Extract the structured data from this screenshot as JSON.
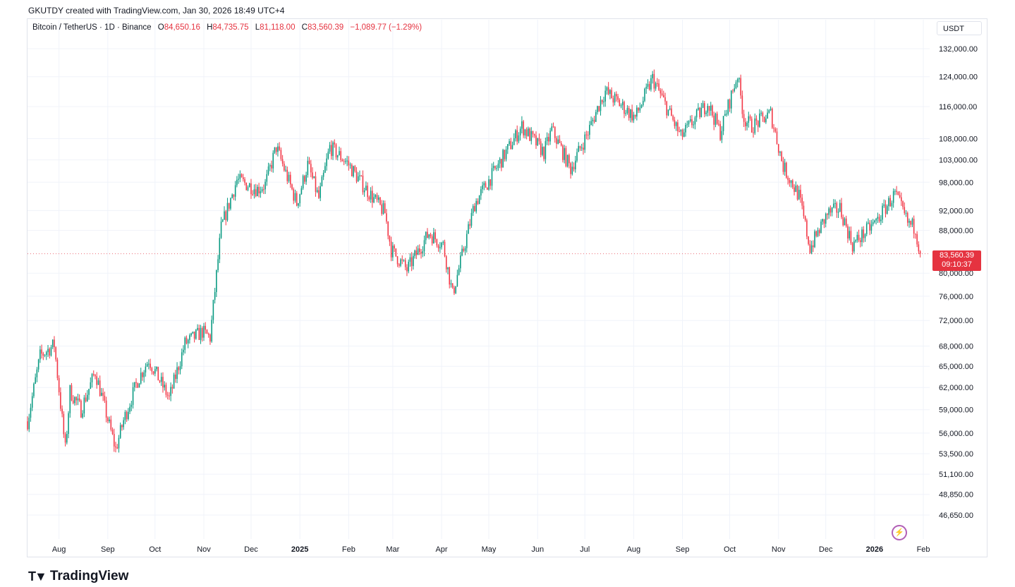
{
  "header": {
    "caption": "GKUTDY created with TradingView.com, Jan 30, 2026 18:49 UTC+4"
  },
  "legend": {
    "symbol": "Bitcoin / TetherUS · 1D · Binance",
    "open_label": "O",
    "open": "84,650.16",
    "high_label": "H",
    "high": "84,735.75",
    "low_label": "L",
    "low": "81,118.00",
    "close_label": "C",
    "close": "83,560.39",
    "change": "−1,089.77 (−1.29%)"
  },
  "currency_button": "USDT",
  "price_tag": {
    "price": "83,560.39",
    "countdown": "09:10:37"
  },
  "footer": {
    "brand": "TradingView"
  },
  "colors": {
    "up": "#089981",
    "down": "#f23645",
    "accent": "#e53340"
  },
  "icons": {
    "bolt": "lightning-icon",
    "logo": "tradingview-logo-icon"
  },
  "chart_data": {
    "type": "line",
    "yscale": "log",
    "ylim": [
      44500,
      136000
    ],
    "y_ticks": [
      "132,000.00",
      "124,000.00",
      "116,000.00",
      "108,000.00",
      "103,000.00",
      "98,000.00",
      "92,000.00",
      "88,000.00",
      "80,000.00",
      "76,000.00",
      "72,000.00",
      "68,000.00",
      "65,000.00",
      "62,000.00",
      "59,000.00",
      "56,000.00",
      "53,500.00",
      "51,100.00",
      "48,850.00",
      "46,650.00"
    ],
    "y_tick_values": [
      132000,
      124000,
      116000,
      108000,
      103000,
      98000,
      92000,
      88000,
      80000,
      76000,
      72000,
      68000,
      65000,
      62000,
      59000,
      56000,
      53500,
      51100,
      48850,
      46650
    ],
    "x_ticks": [
      "Aug",
      "Sep",
      "Oct",
      "Nov",
      "Dec",
      "2025",
      "Feb",
      "Mar",
      "Apr",
      "May",
      "Jun",
      "Jul",
      "Aug",
      "Sep",
      "Oct",
      "Nov",
      "Dec",
      "2026",
      "Feb"
    ],
    "x_tick_bold": [
      false,
      false,
      false,
      false,
      false,
      true,
      false,
      false,
      false,
      false,
      false,
      false,
      false,
      false,
      false,
      false,
      false,
      true,
      false
    ],
    "x_tick_dates": [
      "2024-08-01",
      "2024-09-01",
      "2024-10-01",
      "2024-11-01",
      "2024-12-01",
      "2025-01-01",
      "2025-02-01",
      "2025-03-01",
      "2025-04-01",
      "2025-05-01",
      "2025-06-01",
      "2025-07-01",
      "2025-08-01",
      "2025-09-01",
      "2025-10-01",
      "2025-11-01",
      "2025-12-01",
      "2026-01-01",
      "2026-02-01"
    ],
    "series": [
      {
        "name": "Close",
        "x": [
          "2024-07-12",
          "2024-07-20",
          "2024-07-29",
          "2024-08-05",
          "2024-08-08",
          "2024-08-15",
          "2024-08-24",
          "2024-09-06",
          "2024-09-11",
          "2024-09-20",
          "2024-09-27",
          "2024-10-10",
          "2024-10-20",
          "2024-10-31",
          "2024-11-05",
          "2024-11-12",
          "2024-11-22",
          "2024-12-05",
          "2024-12-10",
          "2024-12-17",
          "2024-12-30",
          "2025-01-06",
          "2025-01-13",
          "2025-01-20",
          "2025-01-31",
          "2025-02-10",
          "2025-02-24",
          "2025-02-28",
          "2025-03-10",
          "2025-03-24",
          "2025-04-02",
          "2025-04-08",
          "2025-04-22",
          "2025-05-09",
          "2025-05-22",
          "2025-06-05",
          "2025-06-10",
          "2025-06-22",
          "2025-07-03",
          "2025-07-11",
          "2025-07-14",
          "2025-08-02",
          "2025-08-13",
          "2025-08-31",
          "2025-09-17",
          "2025-09-25",
          "2025-10-06",
          "2025-10-10",
          "2025-10-15",
          "2025-10-27",
          "2025-11-04",
          "2025-11-14",
          "2025-11-21",
          "2025-12-02",
          "2025-12-10",
          "2025-12-18",
          "2026-01-02",
          "2026-01-14",
          "2026-01-22",
          "2026-01-27",
          "2026-01-30"
        ],
        "y": [
          57500,
          66500,
          68200,
          54000,
          61500,
          59000,
          64200,
          54000,
          57600,
          63000,
          66000,
          60500,
          68400,
          70200,
          69300,
          88500,
          98500,
          96500,
          97500,
          106000,
          93500,
          101900,
          94500,
          106000,
          102400,
          97400,
          91500,
          84300,
          80600,
          87500,
          85200,
          76300,
          93400,
          103000,
          111000,
          104700,
          110200,
          101000,
          109600,
          117500,
          120000,
          113200,
          123500,
          108400,
          117000,
          109500,
          124600,
          113000,
          111000,
          114200,
          101500,
          95000,
          84600,
          91300,
          92500,
          85200,
          89800,
          95500,
          89500,
          88500,
          83560
        ]
      }
    ]
  }
}
